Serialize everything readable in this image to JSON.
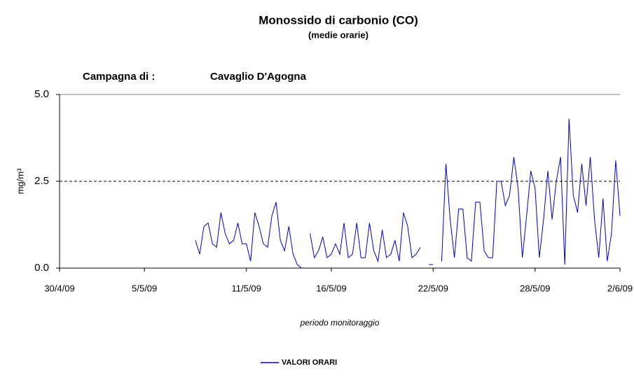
{
  "chart_data": {
    "type": "line",
    "title": "Monossido di carbonio (CO)",
    "subtitle": "(medie orarie)",
    "annotations": [
      "Campagna di :",
      "Cavaglio D'Agogna"
    ],
    "xlabel": "periodo monitoraggio",
    "ylabel": "mg/m³",
    "x": [
      8,
      8.25,
      8.5,
      8.75,
      9,
      9.25,
      9.5,
      9.75,
      10,
      10.25,
      10.5,
      10.75,
      11,
      11.25,
      11.5,
      11.75,
      12,
      12.25,
      12.5,
      12.75,
      13,
      13.25,
      13.5,
      13.75,
      14,
      14.25,
      14.5,
      14.75,
      15,
      15.25,
      15.5,
      15.75,
      16,
      16.25,
      16.5,
      16.75,
      17,
      17.25,
      17.5,
      17.75,
      18,
      18.25,
      18.5,
      18.75,
      19,
      19.25,
      19.5,
      19.75,
      20,
      20.25,
      20.5,
      20.75,
      21,
      21.25,
      21.5,
      21.75,
      22,
      22.25,
      22.5,
      22.75,
      23,
      23.25,
      23.5,
      23.75,
      24,
      24.25,
      24.5,
      24.75,
      25,
      25.25,
      25.5,
      25.75,
      26,
      26.25,
      26.5,
      26.75,
      27,
      27.25,
      27.5,
      27.75,
      28,
      28.25,
      28.5,
      28.75,
      29,
      29.25,
      29.5,
      29.75,
      30,
      30.25,
      30.5,
      30.75,
      31,
      31.25,
      31.5,
      31.75,
      32,
      32.25,
      32.5,
      32.75,
      33
    ],
    "series": [
      {
        "name": "VALORI ORARI",
        "color": "#0000cc",
        "values": [
          0.8,
          0.4,
          1.2,
          1.3,
          0.7,
          0.6,
          1.6,
          1.0,
          0.7,
          0.8,
          1.3,
          0.7,
          0.7,
          0.2,
          1.6,
          1.2,
          0.7,
          0.6,
          1.5,
          1.9,
          0.8,
          0.5,
          1.2,
          0.4,
          0.1,
          0,
          null,
          1.0,
          0.3,
          0.5,
          0.9,
          0.3,
          0.4,
          0.7,
          0.4,
          1.3,
          0.3,
          0.4,
          1.3,
          0.3,
          0.3,
          1.3,
          0.5,
          0.2,
          1.1,
          0.3,
          0.4,
          0.8,
          0.2,
          1.6,
          1.2,
          0.3,
          0.4,
          0.6,
          null,
          0.1,
          0.1,
          null,
          0.2,
          3.0,
          1.4,
          0.3,
          1.7,
          1.7,
          0.3,
          0.2,
          1.9,
          1.9,
          0.5,
          0.3,
          0.3,
          2.5,
          2.5,
          1.8,
          2.1,
          3.2,
          2.3,
          0.3,
          1.5,
          2.8,
          2.3,
          0.3,
          1.4,
          2.8,
          1.4,
          2.5,
          3.2,
          0.1,
          4.3,
          2.1,
          1.6,
          3.0,
          1.8,
          3.2,
          1.4,
          0.3,
          2.0,
          0.2,
          1.0,
          3.1,
          1.5
        ]
      }
    ],
    "xlim": [
      0,
      33
    ],
    "xticks": [
      {
        "value": 0,
        "label": "30/4/09"
      },
      {
        "value": 5,
        "label": "5/5/09"
      },
      {
        "value": 11,
        "label": "11/5/09"
      },
      {
        "value": 16,
        "label": "16/5/09"
      },
      {
        "value": 22,
        "label": "22/5/09"
      },
      {
        "value": 28,
        "label": "28/5/09"
      },
      {
        "value": 33,
        "label": "2/6/09"
      }
    ],
    "ylim": [
      0,
      5
    ],
    "yticks": [
      {
        "value": 0,
        "label": "0.0"
      },
      {
        "value": 2.5,
        "label": "2.5"
      },
      {
        "value": 5,
        "label": "5.0"
      }
    ],
    "grid": true,
    "legend": "bottom"
  }
}
